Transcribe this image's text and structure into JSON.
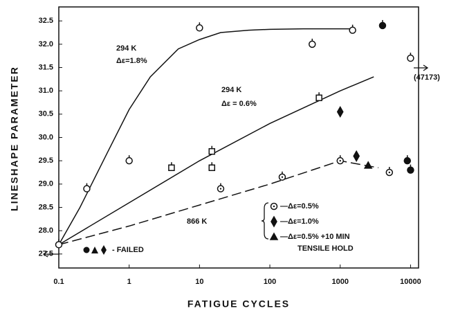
{
  "chart_data": {
    "type": "scatter",
    "xlabel": "FATIGUE  CYCLES",
    "ylabel": "LINESHAPE  PARAMETER",
    "xscale": "log",
    "xlim": [
      0.1,
      13000
    ],
    "ylim": [
      27.2,
      32.8
    ],
    "xticks": [
      0.1,
      1,
      10,
      100,
      1000,
      10000
    ],
    "yticks": [
      27.5,
      {
        "value": 28.0,
        "label": "28.0"
      },
      28.5,
      {
        "value": 29.0,
        "label": "29.0"
      },
      29.5,
      {
        "value": 30.0,
        "label": "30.0"
      },
      30.5,
      {
        "value": 31.0,
        "label": "31.0"
      },
      31.5,
      {
        "value": 32.0,
        "label": "32.0"
      },
      32.5
    ],
    "series": [
      {
        "marker": "circle-open",
        "color": "#111",
        "x": [
          0.1,
          0.25,
          1,
          10,
          400,
          1500,
          10000
        ],
        "values": [
          27.7,
          28.9,
          29.5,
          32.35,
          32.0,
          32.3,
          31.7
        ]
      },
      {
        "marker": "square-open",
        "color": "#111",
        "x": [
          4,
          15,
          15,
          500
        ],
        "values": [
          29.35,
          29.7,
          29.35,
          30.85
        ]
      },
      {
        "marker": "circle-dot",
        "color": "#111",
        "x": [
          20,
          150,
          1000,
          5000
        ],
        "values": [
          28.9,
          29.15,
          29.5,
          29.25
        ]
      },
      {
        "marker": "diamond",
        "color": "#111",
        "x": [
          1000,
          1700
        ],
        "values": [
          30.55,
          29.6
        ]
      },
      {
        "marker": "triangle",
        "color": "#111",
        "x": [
          2500
        ],
        "values": [
          29.4
        ]
      },
      {
        "marker": "circle-filled",
        "color": "#111",
        "x": [
          4000,
          9000,
          10000
        ],
        "values": [
          32.4,
          29.5,
          29.3
        ]
      }
    ],
    "curves": [
      {
        "style": "solid",
        "x": [
          0.1,
          0.2,
          0.5,
          1,
          2,
          5,
          10,
          20,
          50,
          100,
          300,
          1500
        ],
        "values": [
          27.7,
          28.5,
          29.7,
          30.6,
          31.3,
          31.9,
          32.1,
          32.25,
          32.3,
          32.32,
          32.33,
          32.33
        ]
      },
      {
        "style": "solid",
        "x": [
          0.1,
          1,
          10,
          100,
          1000,
          3000
        ],
        "values": [
          27.7,
          28.6,
          29.5,
          30.3,
          31.0,
          31.3
        ]
      },
      {
        "style": "dashed",
        "x": [
          0.1,
          1,
          10,
          100,
          1000,
          1500,
          3500
        ],
        "values": [
          27.7,
          28.1,
          28.55,
          29.0,
          29.5,
          29.45,
          29.35
        ]
      }
    ],
    "annotations": [
      "294 K",
      "Δε=1.8%",
      "294 K",
      "Δε = 0.6%",
      "866 K",
      "—Δε=0.5%",
      "—Δε=1.0%",
      "—Δε=0.5% +10  MIN",
      "TENSILE  HOLD",
      "- FAILED",
      "(47173)"
    ]
  }
}
